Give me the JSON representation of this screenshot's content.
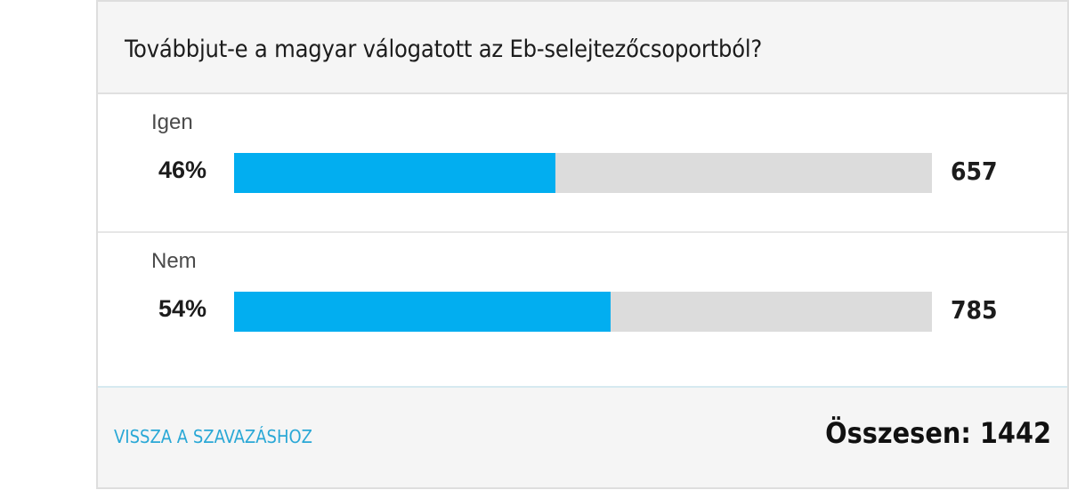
{
  "poll": {
    "question": "Továbbjut-e a magyar válogatott az Eb-selejtezőcsoportból?",
    "options": [
      {
        "label": "Igen",
        "percent_label": "46%",
        "percent": 46,
        "votes": "657"
      },
      {
        "label": "Nem",
        "percent_label": "54%",
        "percent": 54,
        "votes": "785"
      }
    ],
    "back_link": "VISSZA A SZAVAZÁSHOZ",
    "total": "Összesen: 1442"
  },
  "colors": {
    "bar_fill": "#02aef0",
    "bar_track": "#dcdcdc",
    "link": "#2aa8d6"
  }
}
